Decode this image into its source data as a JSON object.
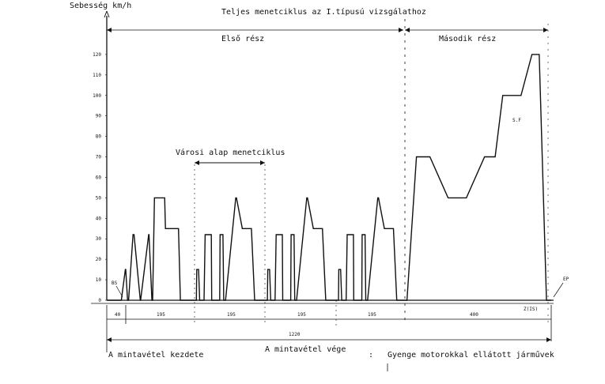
{
  "chart_data": {
    "type": "line",
    "title": "Teljes menetciklus az I.típusú vizsgálathoz",
    "ylabel": "Sebesség km/h",
    "xlabel": "",
    "ylim": [
      0,
      130
    ],
    "xlim": [
      0,
      1220
    ],
    "yticks": [
      "0",
      "10",
      "20",
      "30",
      "40",
      "50",
      "60",
      "70",
      "80",
      "90",
      "100",
      "110",
      "120"
    ],
    "grid": false,
    "parts": [
      {
        "name": "Első rész"
      },
      {
        "name": "Második rész"
      }
    ],
    "bracket_label": "Városi alap menetciklus",
    "segment_labels": [
      "40",
      "195",
      "195",
      "195",
      "195",
      "400"
    ],
    "total_label": "1220",
    "annotations": {
      "bs": "BS",
      "ep": "EP",
      "sf": "S.F",
      "end_time": "Z(IS)"
    },
    "footnotes": {
      "start": "A mintavétel kezdete",
      "end": "A mintavétel vége",
      "colon": ":",
      "note": "Gyenge motorokkal ellátott járművek"
    },
    "series": [
      {
        "x": [
          0,
          40,
          51,
          52,
          57,
          60,
          72,
          75,
          92,
          93,
          115,
          116,
          124,
          126,
          131,
          159,
          161,
          177,
          187,
          197,
          202,
          211,
          235,
          246,
          247,
          252,
          255,
          267,
          270,
          287,
          288,
          310,
          311,
          319,
          321,
          326,
          354,
          356,
          372,
          382,
          392,
          397,
          406,
          430,
          441,
          442,
          447,
          450,
          462,
          465,
          482,
          483,
          505,
          506,
          514,
          516,
          521,
          549,
          551,
          567,
          577,
          587,
          592,
          601,
          625,
          636,
          637,
          642,
          645,
          657,
          660,
          677,
          678,
          700,
          701,
          709,
          711,
          716,
          744,
          746,
          762,
          772,
          782,
          787,
          796,
          820,
          824,
          850,
          887,
          937,
          987,
          1037,
          1066,
          1087,
          1137,
          1167,
          1187,
          1207,
          1220
        ],
        "y": [
          0,
          0,
          15,
          15,
          0,
          0,
          32,
          32,
          0,
          0,
          32,
          32,
          0,
          0,
          50,
          50,
          35,
          35,
          35,
          35,
          0,
          0,
          0,
          0,
          15,
          15,
          0,
          0,
          32,
          32,
          0,
          0,
          32,
          32,
          0,
          0,
          50,
          50,
          35,
          35,
          35,
          35,
          0,
          0,
          0,
          15,
          15,
          0,
          0,
          32,
          32,
          0,
          0,
          32,
          32,
          0,
          0,
          50,
          50,
          35,
          35,
          35,
          35,
          0,
          0,
          0,
          15,
          15,
          0,
          0,
          32,
          32,
          0,
          0,
          32,
          32,
          0,
          0,
          50,
          50,
          35,
          35,
          35,
          35,
          0,
          0,
          0,
          70,
          70,
          50,
          50,
          70,
          70,
          100,
          100,
          120,
          120,
          0,
          0
        ]
      }
    ]
  }
}
